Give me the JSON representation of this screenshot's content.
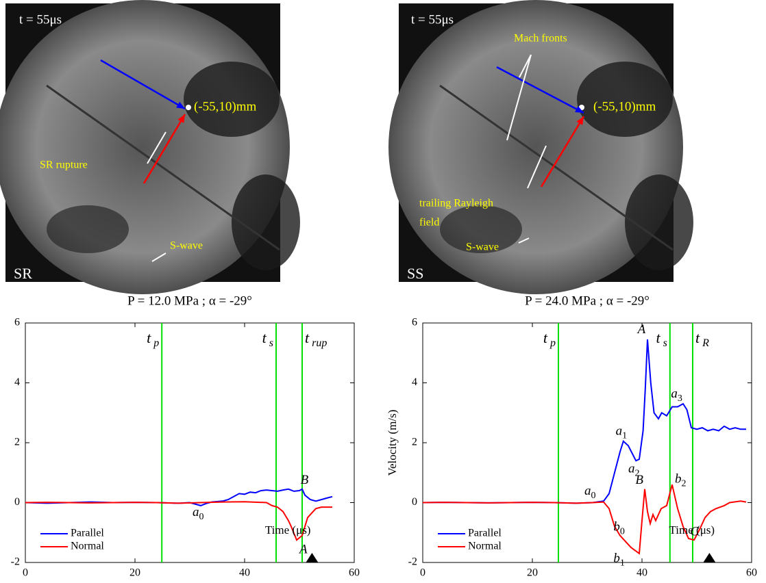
{
  "photos": [
    {
      "labels": [
        "t = 55μs",
        "(-55,10)mm",
        "SR rupture",
        "S-wave",
        "SR"
      ]
    },
    {
      "labels": [
        "t = 55μs",
        "Mach fronts",
        "(-55,10)mm",
        "trailing Rayleigh",
        "field",
        "S-wave",
        "SS"
      ]
    }
  ],
  "chart_data": [
    {
      "type": "line",
      "title": "P = 12.0 MPa ; α = -29°",
      "x_label": "Time (μs)",
      "xlim": [
        0,
        60
      ],
      "ylim": [
        -2,
        6
      ],
      "xticks": [
        0,
        20,
        40,
        60
      ],
      "yticks": [
        -2,
        0,
        2,
        4,
        6
      ],
      "legend": "lower left",
      "marker": 52.3,
      "vlines": [
        {
          "x": 24.9,
          "label": "t",
          "sub": "p"
        },
        {
          "x": 45.75,
          "label": "t",
          "sub": "s"
        },
        {
          "x": 50.5,
          "label": "t",
          "sub": "rup"
        }
      ],
      "annotations": [
        {
          "text": "a",
          "sub": "0"
        },
        {
          "text": "B"
        },
        {
          "text": "A"
        }
      ],
      "series": [
        {
          "name": "Parallel",
          "color": "#0000ff",
          "x": [
            0,
            4,
            8,
            12,
            16,
            20,
            24,
            28,
            30,
            32,
            33,
            34,
            36,
            37,
            38,
            39,
            40,
            41,
            42,
            43,
            44,
            45,
            46,
            47,
            48,
            49,
            50,
            50.5,
            51,
            52,
            53,
            54,
            55,
            56
          ],
          "values": [
            0,
            -0.02,
            0,
            0.02,
            0,
            0.01,
            0,
            -0.02,
            0,
            -0.1,
            -0.03,
            0.02,
            0.05,
            0.1,
            0.2,
            0.3,
            0.28,
            0.35,
            0.33,
            0.4,
            0.42,
            0.4,
            0.38,
            0.42,
            0.45,
            0.38,
            0.4,
            0.45,
            0.25,
            0.1,
            0.05,
            0.1,
            0.15,
            0.2
          ]
        },
        {
          "name": "Normal",
          "color": "#ff0000",
          "x": [
            0,
            4,
            8,
            12,
            16,
            20,
            24,
            28,
            32,
            36,
            40,
            44,
            45,
            46,
            47,
            48,
            48.5,
            49.5,
            50.5,
            51.5,
            52.5,
            53,
            54,
            55,
            56
          ],
          "values": [
            0,
            0.01,
            0,
            -0.01,
            0,
            0.01,
            0,
            -0.02,
            0,
            0.02,
            0.03,
            0,
            -0.1,
            -0.15,
            -0.3,
            -0.6,
            -0.8,
            -1.25,
            -1.1,
            -0.5,
            -0.3,
            -0.2,
            -0.15,
            -0.15,
            -0.15
          ]
        }
      ]
    },
    {
      "type": "line",
      "title": "P = 24.0 MPa ; α = -29°",
      "x_label": "Time (μs)",
      "y_label": "Velocity (m/s)",
      "xlim": [
        0,
        60
      ],
      "ylim": [
        -2,
        6
      ],
      "xticks": [
        0,
        20,
        40,
        60
      ],
      "yticks": [
        -2,
        0,
        2,
        4,
        6
      ],
      "legend": "lower left",
      "marker": 52.3,
      "vlines": [
        {
          "x": 24.75,
          "label": "t",
          "sub": "p"
        },
        {
          "x": 45.1,
          "label": "t",
          "sub": "s"
        },
        {
          "x": 49.25,
          "label": "t",
          "sub": "R"
        }
      ],
      "annotations": [
        {
          "text": "a",
          "sub": "0"
        },
        {
          "text": "a",
          "sub": "1"
        },
        {
          "text": "a",
          "sub": "2"
        },
        {
          "text": "A"
        },
        {
          "text": "a",
          "sub": "3"
        },
        {
          "text": "B"
        },
        {
          "text": "b",
          "sub": "2"
        },
        {
          "text": "b",
          "sub": "0"
        },
        {
          "text": "b",
          "sub": "1"
        },
        {
          "text": "C"
        }
      ],
      "series": [
        {
          "name": "Parallel",
          "color": "#0000ff",
          "x": [
            0,
            4,
            8,
            12,
            16,
            20,
            24,
            28,
            31,
            33,
            34,
            35,
            36,
            36.6,
            37.5,
            38.9,
            39.5,
            40.2,
            40.6,
            41,
            41.6,
            42.2,
            43,
            43.6,
            44.5,
            45.5,
            46.5,
            47.5,
            48.2,
            49,
            50,
            51,
            52,
            53,
            54,
            55,
            56,
            57,
            58,
            59
          ],
          "values": [
            0,
            0.01,
            0,
            -0.01,
            0,
            0.01,
            0,
            -0.02,
            0,
            0.05,
            0.3,
            1.0,
            1.7,
            2.05,
            1.9,
            1.4,
            1.45,
            2.4,
            3.8,
            5.45,
            4.0,
            3.0,
            2.8,
            3.0,
            2.9,
            3.2,
            3.2,
            3.3,
            3.1,
            2.5,
            2.45,
            2.5,
            2.4,
            2.45,
            2.4,
            2.55,
            2.45,
            2.5,
            2.45,
            2.45
          ]
        },
        {
          "name": "Normal",
          "color": "#ff0000",
          "x": [
            0,
            4,
            8,
            12,
            16,
            20,
            24,
            28,
            31,
            33,
            34,
            35,
            36,
            37,
            38,
            39.5,
            40,
            40.5,
            41,
            41.5,
            42,
            42.5,
            43.5,
            44.5,
            45.5,
            46,
            46.5,
            47.5,
            48.5,
            49.5,
            50.5,
            51.5,
            52.5,
            53.5,
            55,
            56,
            58,
            59
          ],
          "values": [
            0,
            0.01,
            0,
            -0.01,
            0,
            0.01,
            0,
            -0.02,
            0,
            0.02,
            -0.2,
            -0.8,
            -1.1,
            -1.3,
            -1.5,
            -1.7,
            -0.6,
            0.45,
            -0.3,
            -0.7,
            -0.4,
            -0.6,
            -0.2,
            -0.1,
            0.6,
            0.2,
            -0.2,
            -0.8,
            -1.2,
            -1.25,
            -0.9,
            -0.5,
            -0.3,
            -0.2,
            -0.1,
            0.0,
            0.05,
            0.02
          ]
        }
      ]
    }
  ]
}
